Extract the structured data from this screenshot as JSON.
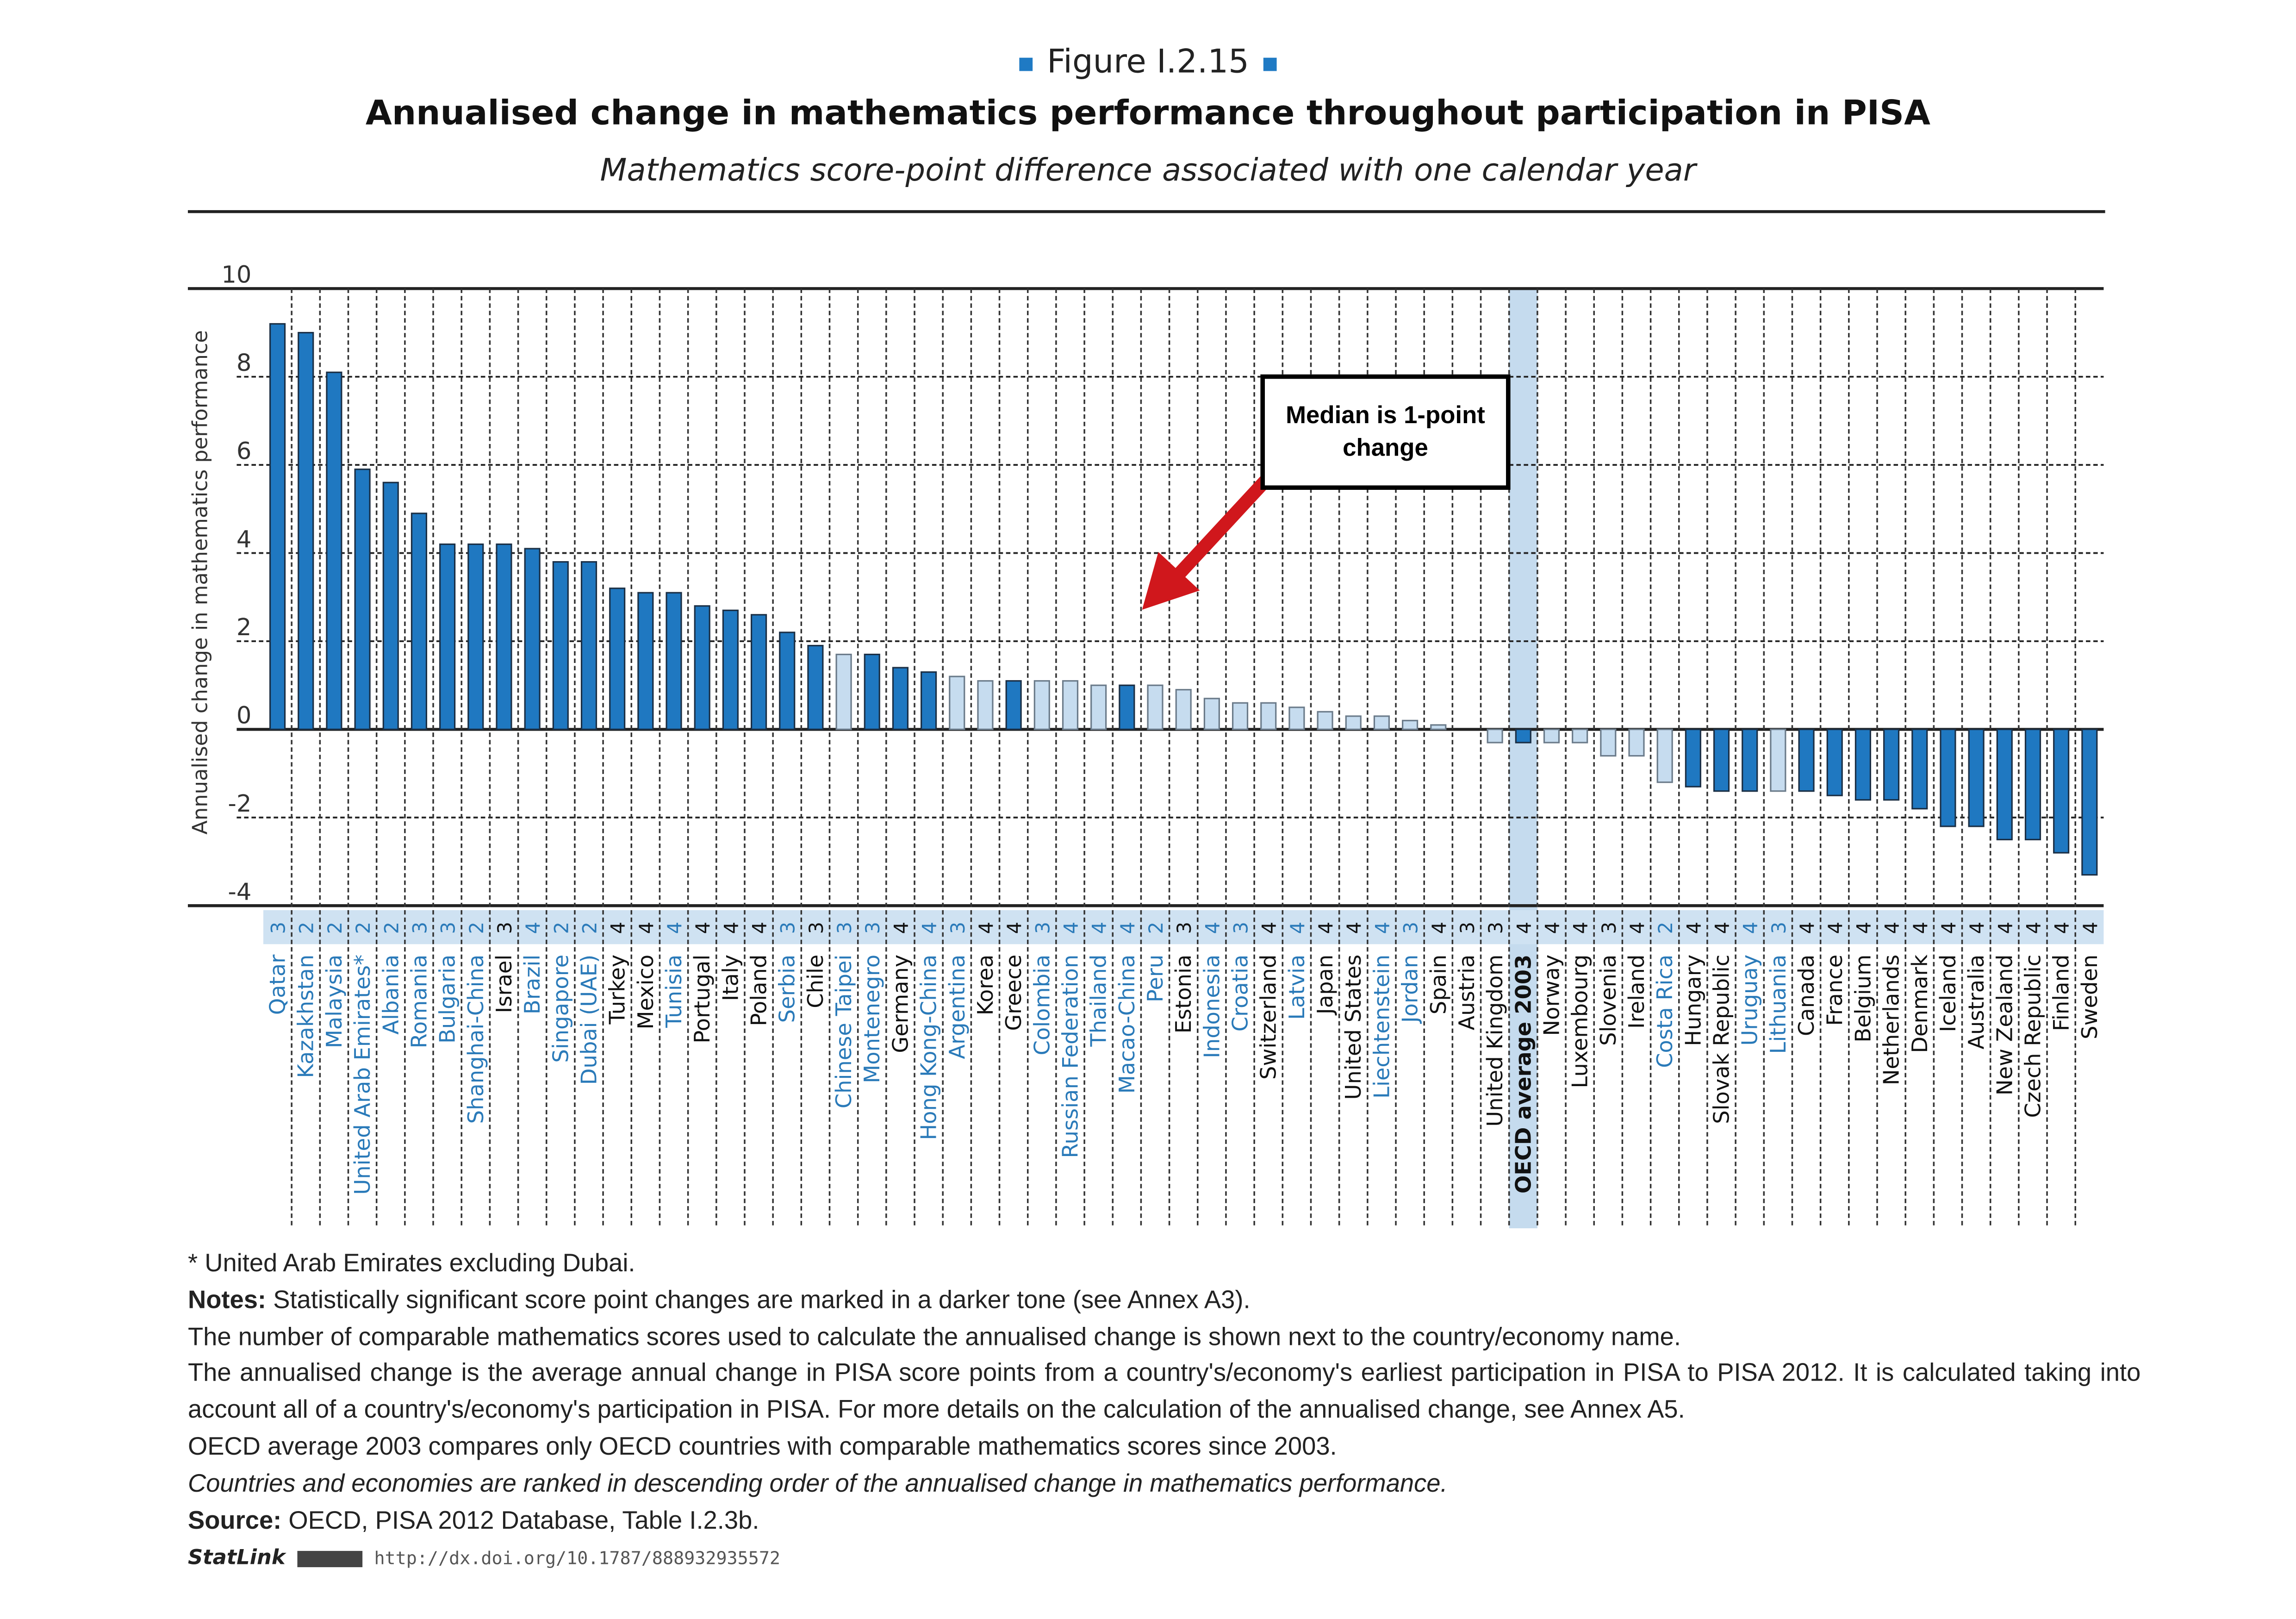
{
  "header": {
    "figure_label": "Figure I.2.15",
    "title": "Annualised change in mathematics performance throughout participation in PISA",
    "subtitle": "Mathematics score-point difference associated with one calendar year"
  },
  "annotation": {
    "text": "Median is 1-point change",
    "arrow_color": "#d0171c"
  },
  "colors": {
    "significant_bar": "#1f78c1",
    "non_significant_bar": "#c6dcef",
    "partner_label": "#2a7ab9",
    "oecd_label": "#111111",
    "count_band": "#cfe2f2",
    "highlight_column": "#c5dbee"
  },
  "chart_data": {
    "type": "bar",
    "ylabel": "Annualised change in mathematics performance",
    "ylim": [
      -4,
      10
    ],
    "yticks": [
      10,
      8,
      6,
      4,
      2,
      0,
      -2,
      -4
    ],
    "grid": true,
    "legend": "none",
    "highlight": "OECD average 2003",
    "categories": [
      {
        "name": "Qatar",
        "n": "3",
        "partner": true,
        "value": 9.2,
        "significant": true
      },
      {
        "name": "Kazakhstan",
        "n": "2",
        "partner": true,
        "value": 9.0,
        "significant": true
      },
      {
        "name": "Malaysia",
        "n": "2",
        "partner": true,
        "value": 8.1,
        "significant": true
      },
      {
        "name": "United Arab Emirates*",
        "n": "2",
        "partner": true,
        "value": 5.9,
        "significant": true
      },
      {
        "name": "Albania",
        "n": "2",
        "partner": true,
        "value": 5.6,
        "significant": true
      },
      {
        "name": "Romania",
        "n": "3",
        "partner": true,
        "value": 4.9,
        "significant": true
      },
      {
        "name": "Bulgaria",
        "n": "3",
        "partner": true,
        "value": 4.2,
        "significant": true
      },
      {
        "name": "Shanghai-China",
        "n": "2",
        "partner": true,
        "value": 4.2,
        "significant": true
      },
      {
        "name": "Israel",
        "n": "3",
        "partner": false,
        "value": 4.2,
        "significant": true
      },
      {
        "name": "Brazil",
        "n": "4",
        "partner": true,
        "value": 4.1,
        "significant": true
      },
      {
        "name": "Singapore",
        "n": "2",
        "partner": true,
        "value": 3.8,
        "significant": true
      },
      {
        "name": "Dubai (UAE)",
        "n": "2",
        "partner": true,
        "value": 3.8,
        "significant": true
      },
      {
        "name": "Turkey",
        "n": "4",
        "partner": false,
        "value": 3.2,
        "significant": true
      },
      {
        "name": "Mexico",
        "n": "4",
        "partner": false,
        "value": 3.1,
        "significant": true
      },
      {
        "name": "Tunisia",
        "n": "4",
        "partner": true,
        "value": 3.1,
        "significant": true
      },
      {
        "name": "Portugal",
        "n": "4",
        "partner": false,
        "value": 2.8,
        "significant": true
      },
      {
        "name": "Italy",
        "n": "4",
        "partner": false,
        "value": 2.7,
        "significant": true
      },
      {
        "name": "Poland",
        "n": "4",
        "partner": false,
        "value": 2.6,
        "significant": true
      },
      {
        "name": "Serbia",
        "n": "3",
        "partner": true,
        "value": 2.2,
        "significant": true
      },
      {
        "name": "Chile",
        "n": "3",
        "partner": false,
        "value": 1.9,
        "significant": true
      },
      {
        "name": "Chinese Taipei",
        "n": "3",
        "partner": true,
        "value": 1.7,
        "significant": false
      },
      {
        "name": "Montenegro",
        "n": "3",
        "partner": true,
        "value": 1.7,
        "significant": true
      },
      {
        "name": "Germany",
        "n": "4",
        "partner": false,
        "value": 1.4,
        "significant": true
      },
      {
        "name": "Hong Kong-China",
        "n": "4",
        "partner": true,
        "value": 1.3,
        "significant": true
      },
      {
        "name": "Argentina",
        "n": "3",
        "partner": true,
        "value": 1.2,
        "significant": false
      },
      {
        "name": "Korea",
        "n": "4",
        "partner": false,
        "value": 1.1,
        "significant": false
      },
      {
        "name": "Greece",
        "n": "4",
        "partner": false,
        "value": 1.1,
        "significant": true
      },
      {
        "name": "Colombia",
        "n": "3",
        "partner": true,
        "value": 1.1,
        "significant": false
      },
      {
        "name": "Russian Federation",
        "n": "4",
        "partner": true,
        "value": 1.1,
        "significant": false
      },
      {
        "name": "Thailand",
        "n": "4",
        "partner": true,
        "value": 1.0,
        "significant": false
      },
      {
        "name": "Macao-China",
        "n": "4",
        "partner": true,
        "value": 1.0,
        "significant": true
      },
      {
        "name": "Peru",
        "n": "2",
        "partner": true,
        "value": 1.0,
        "significant": false
      },
      {
        "name": "Estonia",
        "n": "3",
        "partner": false,
        "value": 0.9,
        "significant": false
      },
      {
        "name": "Indonesia",
        "n": "4",
        "partner": true,
        "value": 0.7,
        "significant": false
      },
      {
        "name": "Croatia",
        "n": "3",
        "partner": true,
        "value": 0.6,
        "significant": false
      },
      {
        "name": "Switzerland",
        "n": "4",
        "partner": false,
        "value": 0.6,
        "significant": false
      },
      {
        "name": "Latvia",
        "n": "4",
        "partner": true,
        "value": 0.5,
        "significant": false
      },
      {
        "name": "Japan",
        "n": "4",
        "partner": false,
        "value": 0.4,
        "significant": false
      },
      {
        "name": "United States",
        "n": "4",
        "partner": false,
        "value": 0.3,
        "significant": false
      },
      {
        "name": "Liechtenstein",
        "n": "4",
        "partner": true,
        "value": 0.3,
        "significant": false
      },
      {
        "name": "Jordan",
        "n": "3",
        "partner": true,
        "value": 0.2,
        "significant": false
      },
      {
        "name": "Spain",
        "n": "4",
        "partner": false,
        "value": 0.1,
        "significant": false
      },
      {
        "name": "Austria",
        "n": "3",
        "partner": false,
        "value": 0.0,
        "significant": false
      },
      {
        "name": "United Kingdom",
        "n": "3",
        "partner": false,
        "value": -0.3,
        "significant": false
      },
      {
        "name": "OECD average 2003",
        "n": "4",
        "partner": false,
        "value": -0.3,
        "significant": true
      },
      {
        "name": "Norway",
        "n": "4",
        "partner": false,
        "value": -0.3,
        "significant": false
      },
      {
        "name": "Luxembourg",
        "n": "4",
        "partner": false,
        "value": -0.3,
        "significant": false
      },
      {
        "name": "Slovenia",
        "n": "3",
        "partner": false,
        "value": -0.6,
        "significant": false
      },
      {
        "name": "Ireland",
        "n": "4",
        "partner": false,
        "value": -0.6,
        "significant": false
      },
      {
        "name": "Costa Rica",
        "n": "2",
        "partner": true,
        "value": -1.2,
        "significant": false
      },
      {
        "name": "Hungary",
        "n": "4",
        "partner": false,
        "value": -1.3,
        "significant": true
      },
      {
        "name": "Slovak Republic",
        "n": "4",
        "partner": false,
        "value": -1.4,
        "significant": true
      },
      {
        "name": "Uruguay",
        "n": "4",
        "partner": true,
        "value": -1.4,
        "significant": true
      },
      {
        "name": "Lithuania",
        "n": "3",
        "partner": true,
        "value": -1.4,
        "significant": false
      },
      {
        "name": "Canada",
        "n": "4",
        "partner": false,
        "value": -1.4,
        "significant": true
      },
      {
        "name": "France",
        "n": "4",
        "partner": false,
        "value": -1.5,
        "significant": true
      },
      {
        "name": "Belgium",
        "n": "4",
        "partner": false,
        "value": -1.6,
        "significant": true
      },
      {
        "name": "Netherlands",
        "n": "4",
        "partner": false,
        "value": -1.6,
        "significant": true
      },
      {
        "name": "Denmark",
        "n": "4",
        "partner": false,
        "value": -1.8,
        "significant": true
      },
      {
        "name": "Iceland",
        "n": "4",
        "partner": false,
        "value": -2.2,
        "significant": true
      },
      {
        "name": "Australia",
        "n": "4",
        "partner": false,
        "value": -2.2,
        "significant": true
      },
      {
        "name": "New Zealand",
        "n": "4",
        "partner": false,
        "value": -2.5,
        "significant": true
      },
      {
        "name": "Czech Republic",
        "n": "4",
        "partner": false,
        "value": -2.5,
        "significant": true
      },
      {
        "name": "Finland",
        "n": "4",
        "partner": false,
        "value": -2.8,
        "significant": true
      },
      {
        "name": "Sweden",
        "n": "4",
        "partner": false,
        "value": -3.3,
        "significant": true
      }
    ]
  },
  "footer": {
    "footnote": "* United Arab Emirates excluding Dubai.",
    "notes_label": "Notes:",
    "notes_1": "Statistically significant score point changes are marked in a darker tone (see Annex A3).",
    "notes_2": "The number of comparable mathematics scores used to calculate the annualised change is shown next to the country/economy name.",
    "notes_3": "The annualised change is the average annual change in PISA score points from a country's/economy's earliest participation in PISA to PISA 2012. It is calculated taking into account all of a country's/economy's participation in PISA. For more details on the calculation of the annualised change, see Annex A5.",
    "notes_4": "OECD average 2003 compares only OECD countries with comparable mathematics scores since 2003.",
    "ranking_note": "Countries and economies are ranked in descending order of the annualised change in mathematics performance.",
    "source_label": "Source:",
    "source_text": "OECD, PISA 2012 Database, Table I.2.3b.",
    "statlink_label": "StatLink",
    "statlink_url": "http://dx.doi.org/10.1787/888932935572"
  }
}
